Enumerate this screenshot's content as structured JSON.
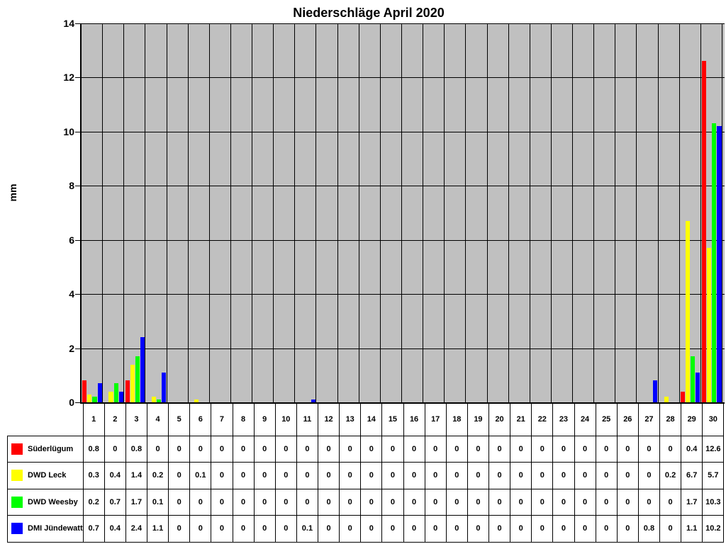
{
  "title": "Niederschläge April 2020",
  "y_axis": {
    "title": "mm",
    "tick_labels": [
      "14",
      "12",
      "10",
      "8",
      "6",
      "4",
      "2",
      "0"
    ]
  },
  "colors": {
    "plot_background": "#C0C0C0",
    "gridline": "#000000",
    "series": [
      "#FF0000",
      "#FFFF00",
      "#00FF00",
      "#0000FF"
    ]
  },
  "chart_data": {
    "type": "bar",
    "title": "Niederschläge April 2020",
    "xlabel": "",
    "ylabel": "mm",
    "ylim": [
      0,
      14
    ],
    "y_tick_step": 2,
    "grid": true,
    "plot_bg": "#C0C0C0",
    "legend_position": "table-left",
    "categories": [
      "1",
      "2",
      "3",
      "4",
      "5",
      "6",
      "7",
      "8",
      "9",
      "10",
      "11",
      "12",
      "13",
      "14",
      "15",
      "16",
      "17",
      "18",
      "19",
      "20",
      "21",
      "22",
      "23",
      "24",
      "25",
      "26",
      "27",
      "28",
      "29",
      "30"
    ],
    "series": [
      {
        "name": "Süderlügum",
        "color": "#FF0000",
        "values": [
          0.8,
          0,
          0.8,
          0,
          0,
          0,
          0,
          0,
          0,
          0,
          0,
          0,
          0,
          0,
          0,
          0,
          0,
          0,
          0,
          0,
          0,
          0,
          0,
          0,
          0,
          0,
          0,
          0,
          0.4,
          12.6
        ]
      },
      {
        "name": "DWD Leck",
        "color": "#FFFF00",
        "values": [
          0.3,
          0.4,
          1.4,
          0.2,
          0,
          0.1,
          0,
          0,
          0,
          0,
          0,
          0,
          0,
          0,
          0,
          0,
          0,
          0,
          0,
          0,
          0,
          0,
          0,
          0,
          0,
          0,
          0,
          0.2,
          6.7,
          5.7
        ]
      },
      {
        "name": "DWD Weesby",
        "color": "#00FF00",
        "values": [
          0.2,
          0.7,
          1.7,
          0.1,
          0,
          0,
          0,
          0,
          0,
          0,
          0,
          0,
          0,
          0,
          0,
          0,
          0,
          0,
          0,
          0,
          0,
          0,
          0,
          0,
          0,
          0,
          0,
          0,
          1.7,
          10.3
        ]
      },
      {
        "name": "DMI Jündewatt",
        "color": "#0000FF",
        "values": [
          0.7,
          0.4,
          2.4,
          1.1,
          0,
          0,
          0,
          0,
          0,
          0,
          0.1,
          0,
          0,
          0,
          0,
          0,
          0,
          0,
          0,
          0,
          0,
          0,
          0,
          0,
          0,
          0,
          0.8,
          0,
          1.1,
          10.2
        ]
      }
    ]
  }
}
